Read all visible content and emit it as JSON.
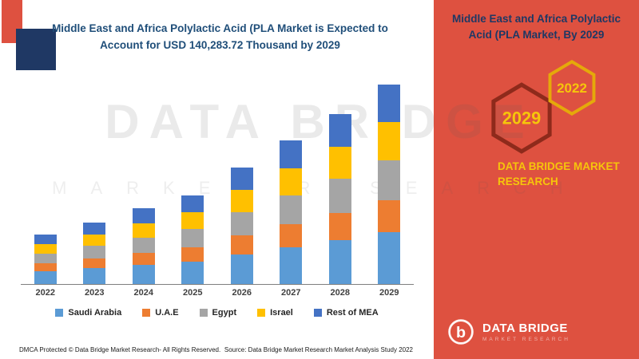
{
  "colors": {
    "panel_red": "#DE5140",
    "title_blue": "#1F4E79",
    "navy": "#1F3864",
    "yellow": "#F6C50B",
    "hex2029_stroke": "#8E2A1B",
    "hex2022_stroke": "#E5A90A",
    "axis": "#7f7f7f"
  },
  "left_panel": {
    "title": "Middle East and Africa Polylactic Acid (PLA Market is Expected to Account for USD 140,283.72 Thousand by 2029"
  },
  "chart_data": {
    "type": "bar",
    "stacked": true,
    "title": "Middle East and Africa Polylactic Acid (PLA Market is Expected to Account for USD 140,283.72 Thousand by 2029",
    "unit": "USD Thousand",
    "categories": [
      "2022",
      "2023",
      "2024",
      "2025",
      "2026",
      "2027",
      "2028",
      "2029"
    ],
    "series": [
      {
        "name": "Saudi Arabia",
        "color": "#5B9BD5",
        "values": [
          9000,
          11000,
          13500,
          16000,
          21000,
          26000,
          31000,
          36500
        ]
      },
      {
        "name": "U.A.E",
        "color": "#ED7D31",
        "values": [
          5500,
          7000,
          8500,
          10000,
          13000,
          16000,
          19000,
          22500
        ]
      },
      {
        "name": "Egypt",
        "color": "#A5A5A5",
        "values": [
          7000,
          8800,
          10800,
          12600,
          16600,
          20500,
          24000,
          28300
        ]
      },
      {
        "name": "Israel",
        "color": "#FFC000",
        "values": [
          6500,
          8200,
          10000,
          11800,
          15500,
          19000,
          22500,
          26500
        ]
      },
      {
        "name": "Rest of MEA",
        "color": "#4472C4",
        "values": [
          6600,
          8300,
          10300,
          11900,
          15900,
          19500,
          23000,
          26483.72
        ]
      }
    ],
    "stated_total_2029_usd_thousand": "140,283.72",
    "xlabel": "",
    "ylabel": "",
    "y_axis_visible": false,
    "grid": false,
    "legend_position": "bottom"
  },
  "watermark": {
    "line1": "DATA BRIDGE",
    "line2": "MARKET RESEARCH"
  },
  "footer": {
    "left": "DMCA Protected © Data Bridge Market Research- All Rights Reserved.",
    "source": "Source: Data Bridge Market Research Market Analysis Study 2022"
  },
  "right_panel": {
    "title": "Middle East and Africa Polylactic Acid (PLA Market, By 2029",
    "hexagons": [
      {
        "year": "2029"
      },
      {
        "year": "2022"
      }
    ],
    "brand_text": "DATA BRIDGE MARKET RESEARCH",
    "logo_text": "DATA BRIDGE",
    "logo_subtext": "MARKET RESEARCH"
  }
}
